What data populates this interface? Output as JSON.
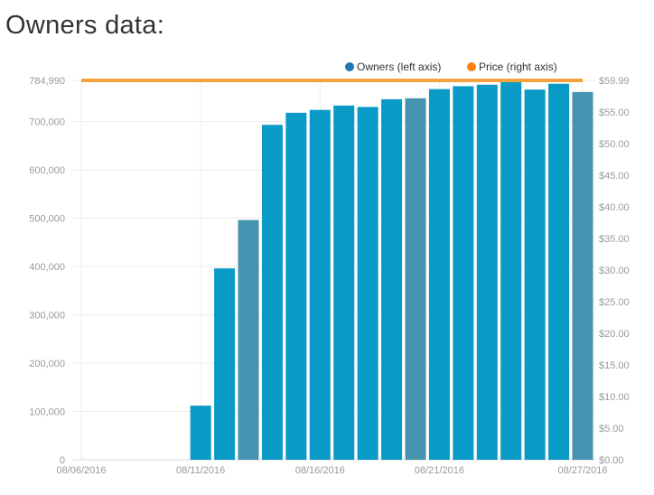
{
  "page": {
    "title": "Owners data:"
  },
  "colors": {
    "owners_bar": "#0a9ac7",
    "owners_bar_weekend": "#4592b1",
    "owners_legend": "#1f77b4",
    "price_line": "#f7a23c",
    "price_legend": "#ff7f0e",
    "grid": "#eeeeee",
    "tick_text": "#9a9a9a"
  },
  "chart_data": {
    "type": "bar",
    "legend": {
      "position": "top-right",
      "entries": [
        "Owners (left axis)",
        "Price (right axis)"
      ]
    },
    "x_tick_labels": [
      "08/06/2016",
      "08/11/2016",
      "08/16/2016",
      "08/21/2016",
      "08/27/2016"
    ],
    "x_tick_dates": [
      "2016-08-06",
      "2016-08-11",
      "2016-08-16",
      "2016-08-21",
      "2016-08-27"
    ],
    "xlim": [
      "2016-08-06",
      "2016-08-27"
    ],
    "y_left": {
      "ylim": [
        0,
        784990
      ],
      "tick_labels": [
        "0",
        "100,000",
        "200,000",
        "300,000",
        "400,000",
        "500,000",
        "600,000",
        "700,000",
        "784,990"
      ],
      "tick_values": [
        0,
        100000,
        200000,
        300000,
        400000,
        500000,
        600000,
        700000,
        784990
      ]
    },
    "y_right": {
      "ylim": [
        0,
        59.99
      ],
      "tick_labels": [
        "$0.00",
        "$5.00",
        "$10.00",
        "$15.00",
        "$20.00",
        "$25.00",
        "$30.00",
        "$35.00",
        "$40.00",
        "$45.00",
        "$50.00",
        "$55.00",
        "$59.99"
      ],
      "tick_values": [
        0,
        5,
        10,
        15,
        20,
        25,
        30,
        35,
        40,
        45,
        50,
        55,
        59.99
      ]
    },
    "series": [
      {
        "name": "Owners (left axis)",
        "axis": "left",
        "type": "bar",
        "x": [
          "2016-08-11",
          "2016-08-12",
          "2016-08-13",
          "2016-08-14",
          "2016-08-15",
          "2016-08-16",
          "2016-08-17",
          "2016-08-18",
          "2016-08-19",
          "2016-08-20",
          "2016-08-21",
          "2016-08-22",
          "2016-08-23",
          "2016-08-24",
          "2016-08-25",
          "2016-08-26",
          "2016-08-27"
        ],
        "values": [
          112000,
          396000,
          496000,
          693000,
          718000,
          724000,
          733000,
          730000,
          746000,
          748000,
          767000,
          773000,
          776000,
          784990,
          766000,
          778000,
          761000
        ],
        "weekend": [
          false,
          false,
          true,
          false,
          false,
          false,
          false,
          false,
          false,
          true,
          false,
          false,
          false,
          false,
          false,
          false,
          true
        ]
      },
      {
        "name": "Price (right axis)",
        "axis": "right",
        "type": "line",
        "x": [
          "2016-08-06",
          "2016-08-27"
        ],
        "values": [
          59.99,
          59.99
        ]
      }
    ],
    "grid": true
  }
}
